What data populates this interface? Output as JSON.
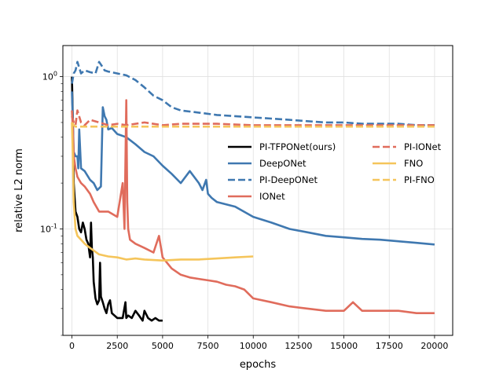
{
  "chart_data": {
    "type": "line",
    "xlabel": "epochs",
    "ylabel": "relative L2 norm",
    "y_scale": "log",
    "xlim": [
      -500,
      21000
    ],
    "ylim": [
      0.02,
      1.6
    ],
    "x_ticks": [
      0,
      2500,
      5000,
      7500,
      10000,
      12500,
      15000,
      17500,
      20000
    ],
    "y_major_ticks": [
      0.1,
      1
    ],
    "y_tick_labels": [
      "10^-1",
      "10^0"
    ],
    "grid": true,
    "legend_position": "center-right",
    "series": [
      {
        "name": "PI-TFPONet(ours)",
        "color": "#000000",
        "dash": "solid",
        "x": [
          0,
          50,
          100,
          200,
          300,
          400,
          500,
          600,
          700,
          800,
          900,
          1000,
          1050,
          1100,
          1150,
          1200,
          1300,
          1400,
          1500,
          1550,
          1600,
          1700,
          1800,
          1900,
          2000,
          2100,
          2200,
          2500,
          2800,
          2950,
          3000,
          3100,
          3300,
          3500,
          3700,
          3900,
          4000,
          4200,
          4400,
          4600,
          4800,
          5000
        ],
        "y": [
          1.0,
          0.5,
          0.2,
          0.13,
          0.12,
          0.1,
          0.095,
          0.11,
          0.1,
          0.085,
          0.08,
          0.065,
          0.11,
          0.075,
          0.065,
          0.045,
          0.035,
          0.032,
          0.034,
          0.06,
          0.036,
          0.033,
          0.03,
          0.028,
          0.032,
          0.034,
          0.028,
          0.026,
          0.026,
          0.033,
          0.026,
          0.027,
          0.026,
          0.029,
          0.027,
          0.025,
          0.029,
          0.026,
          0.025,
          0.026,
          0.025,
          0.025
        ]
      },
      {
        "name": "DeepONet",
        "color": "#3f78b0",
        "dash": "solid",
        "x": [
          0,
          50,
          100,
          200,
          300,
          350,
          400,
          500,
          700,
          1000,
          1200,
          1400,
          1600,
          1700,
          1800,
          1900,
          2000,
          2200,
          2500,
          3000,
          3500,
          4000,
          4500,
          5000,
          5500,
          6000,
          6500,
          7000,
          7200,
          7400,
          7500,
          7700,
          8000,
          9000,
          10000,
          11000,
          12000,
          13000,
          14000,
          15000,
          16000,
          17000,
          18000,
          19000,
          20000
        ],
        "y": [
          0.8,
          0.5,
          0.32,
          0.3,
          0.3,
          0.25,
          0.45,
          0.25,
          0.24,
          0.21,
          0.2,
          0.18,
          0.19,
          0.63,
          0.55,
          0.52,
          0.45,
          0.46,
          0.42,
          0.4,
          0.36,
          0.32,
          0.3,
          0.26,
          0.23,
          0.2,
          0.24,
          0.2,
          0.18,
          0.21,
          0.17,
          0.16,
          0.15,
          0.14,
          0.12,
          0.11,
          0.1,
          0.095,
          0.09,
          0.088,
          0.086,
          0.085,
          0.083,
          0.081,
          0.079
        ]
      },
      {
        "name": "PI-DeepONet",
        "color": "#3f78b0",
        "dash": "dashed",
        "x": [
          0,
          100,
          200,
          300,
          500,
          700,
          1000,
          1300,
          1500,
          1600,
          1700,
          1800,
          2000,
          2500,
          3000,
          3500,
          4000,
          4500,
          5000,
          5500,
          6000,
          7000,
          8000,
          9000,
          10000,
          11000,
          12000,
          13000,
          14000,
          15000,
          16000,
          17000,
          18000,
          19000,
          20000
        ],
        "y": [
          0.9,
          1.05,
          1.1,
          1.25,
          1.05,
          1.1,
          1.07,
          1.05,
          1.25,
          1.2,
          1.15,
          1.1,
          1.08,
          1.05,
          1.02,
          0.95,
          0.85,
          0.75,
          0.7,
          0.63,
          0.6,
          0.58,
          0.56,
          0.55,
          0.54,
          0.53,
          0.52,
          0.51,
          0.5,
          0.5,
          0.49,
          0.49,
          0.49,
          0.48,
          0.48
        ]
      },
      {
        "name": "IONet",
        "color": "#e06c5c",
        "dash": "solid",
        "x": [
          0,
          50,
          100,
          200,
          300,
          500,
          700,
          1000,
          1200,
          1500,
          2000,
          2500,
          2800,
          2900,
          3000,
          3050,
          3100,
          3200,
          3500,
          4000,
          4500,
          4800,
          5000,
          5500,
          6000,
          6500,
          7000,
          7500,
          8000,
          8500,
          9000,
          9500,
          10000,
          11000,
          12000,
          13000,
          14000,
          15000,
          15500,
          16000,
          17000,
          18000,
          19000,
          20000
        ],
        "y": [
          0.6,
          0.45,
          0.3,
          0.25,
          0.22,
          0.2,
          0.19,
          0.17,
          0.15,
          0.13,
          0.13,
          0.12,
          0.2,
          0.1,
          0.7,
          0.15,
          0.1,
          0.085,
          0.08,
          0.075,
          0.07,
          0.09,
          0.065,
          0.055,
          0.05,
          0.048,
          0.047,
          0.046,
          0.045,
          0.043,
          0.042,
          0.04,
          0.035,
          0.033,
          0.031,
          0.03,
          0.029,
          0.029,
          0.033,
          0.029,
          0.029,
          0.029,
          0.028,
          0.028
        ]
      },
      {
        "name": "PI-IONet",
        "color": "#e06c5c",
        "dash": "dashed",
        "x": [
          0,
          100,
          200,
          300,
          500,
          700,
          1000,
          1500,
          2000,
          2500,
          3000,
          4000,
          5000,
          6000,
          8000,
          10000,
          12000,
          14000,
          16000,
          18000,
          20000
        ],
        "y": [
          0.55,
          0.5,
          0.48,
          0.6,
          0.5,
          0.48,
          0.52,
          0.5,
          0.48,
          0.49,
          0.48,
          0.5,
          0.48,
          0.49,
          0.49,
          0.48,
          0.48,
          0.48,
          0.48,
          0.48,
          0.48
        ]
      },
      {
        "name": "FNO",
        "color": "#f5c55b",
        "dash": "solid",
        "x": [
          0,
          50,
          100,
          200,
          300,
          500,
          700,
          1000,
          1500,
          2000,
          2500,
          3000,
          3500,
          4000,
          5000,
          6000,
          7000,
          8000,
          9000,
          10000
        ],
        "y": [
          0.5,
          0.3,
          0.15,
          0.1,
          0.09,
          0.085,
          0.08,
          0.075,
          0.068,
          0.066,
          0.065,
          0.063,
          0.064,
          0.063,
          0.062,
          0.063,
          0.063,
          0.064,
          0.065,
          0.066
        ]
      },
      {
        "name": "PI-FNO",
        "color": "#f5c55b",
        "dash": "dashed",
        "x": [
          0,
          100,
          200,
          500,
          1000,
          2000,
          4000,
          6000,
          8000,
          10000,
          12000,
          14000,
          16000,
          18000,
          20000
        ],
        "y": [
          0.5,
          0.48,
          0.47,
          0.47,
          0.47,
          0.47,
          0.47,
          0.47,
          0.47,
          0.47,
          0.47,
          0.47,
          0.47,
          0.47,
          0.47
        ]
      }
    ]
  }
}
